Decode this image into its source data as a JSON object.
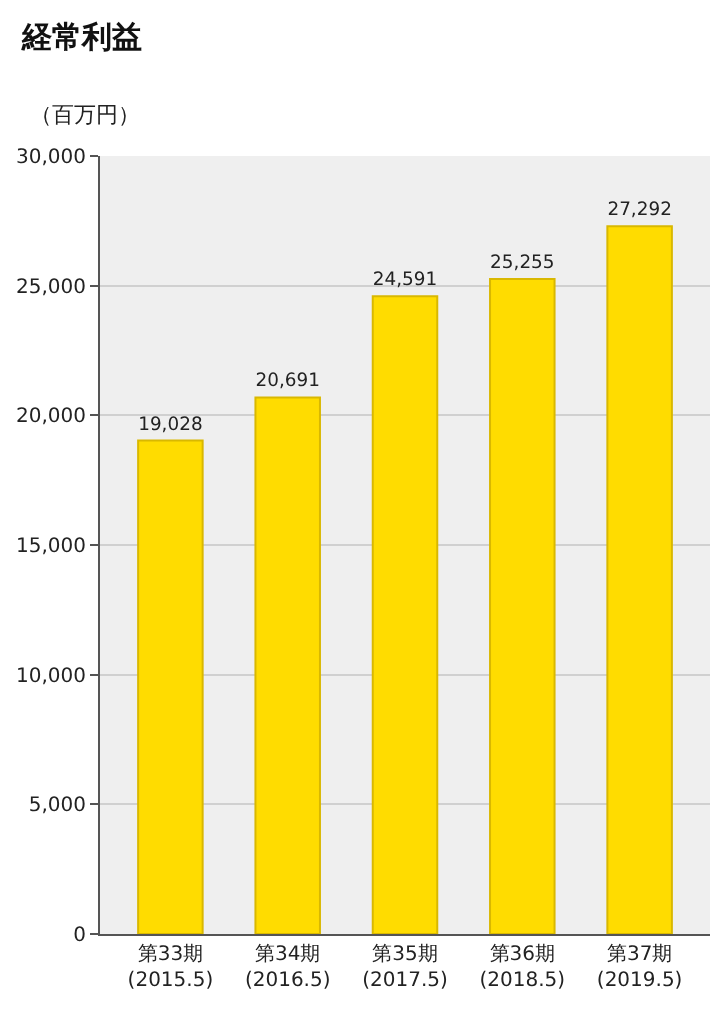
{
  "chart_data": {
    "type": "bar",
    "title": "経常利益",
    "ylabel": "（百万円）",
    "categories": [
      "第33期\n(2015.5)",
      "第34期\n(2016.5)",
      "第35期\n(2017.5)",
      "第36期\n(2018.5)",
      "第37期\n(2019.5)"
    ],
    "values": [
      19028,
      20691,
      24591,
      25255,
      27292
    ],
    "color": "#ffdc00",
    "ylim": [
      0,
      30000
    ],
    "yticks": [
      {
        "value": 0,
        "label": "0"
      },
      {
        "value": 5000,
        "label": "5,000"
      },
      {
        "value": 10000,
        "label": "10,000"
      },
      {
        "value": 15000,
        "label": "15,000"
      },
      {
        "value": 20000,
        "label": "20,000"
      },
      {
        "value": 25000,
        "label": "25,000"
      },
      {
        "value": 30000,
        "label": "30,000"
      }
    ],
    "value_labels": [
      "19,028",
      "20,691",
      "24,591",
      "25,255",
      "27,292"
    ],
    "grid": "y"
  }
}
